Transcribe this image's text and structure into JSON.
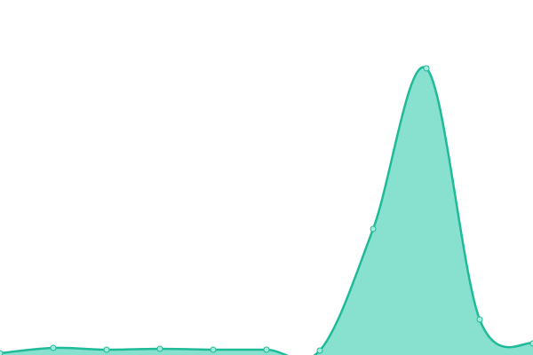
{
  "chart_data": {
    "type": "area",
    "values": [
      2,
      8,
      6,
      7,
      6,
      6,
      5,
      142,
      323,
      40,
      13
    ],
    "ylim": [
      0,
      400
    ],
    "color": "#1fbb98",
    "fill_color": "#88e0cf",
    "marker_color": "#a6ebde"
  }
}
